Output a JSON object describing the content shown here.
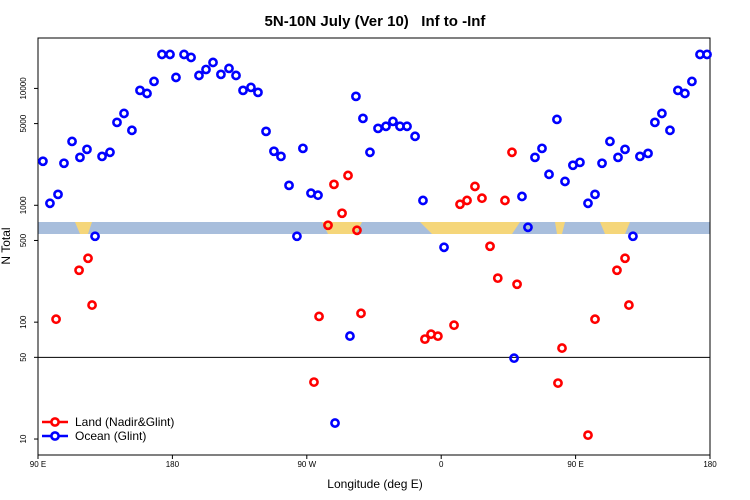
{
  "chart_data": {
    "type": "scatter",
    "title": "5N-10N July (Ver 10)   Inf to -Inf",
    "xlabel": "Longitude (deg E)",
    "ylabel": "N Total",
    "xlim": [
      90,
      540
    ],
    "ylim": [
      7.3,
      27000
    ],
    "yscale": "log",
    "xticks": [
      {
        "value": 90,
        "label": "90 E"
      },
      {
        "value": 180,
        "label": "180"
      },
      {
        "value": 270,
        "label": "90 W"
      },
      {
        "value": 360,
        "label": "0"
      },
      {
        "value": 450,
        "label": "90 E"
      },
      {
        "value": 540,
        "label": "180"
      }
    ],
    "yticks": [
      10,
      50,
      100,
      500,
      1000,
      5000,
      10000
    ],
    "reference_line": 50,
    "legend": "bottom-left",
    "series": [
      {
        "name": "Land (Nadir&Glint)",
        "color": "#ff0000",
        "x": [
          102.1,
          117.5,
          123.5,
          126.2,
          274.8,
          278.2,
          284.2,
          288.2,
          293.6,
          297.6,
          303.6,
          306.3,
          349.1,
          353.2,
          357.8,
          368.6,
          372.6,
          377.3,
          382.6,
          387.3,
          392.7,
          397.9,
          402.7,
          407.4,
          410.8,
          438.2,
          440.9,
          458.3,
          463.0,
          477.7,
          483.1,
          485.7
        ],
        "values": [
          106,
          278,
          352,
          140,
          30.7,
          112,
          675,
          1510,
          855,
          1800,
          611,
          119,
          71.6,
          78.9,
          75.9,
          94.2,
          1020,
          1100,
          1450,
          1150,
          446,
          238,
          1100,
          2840,
          211,
          30.1,
          60,
          10.8,
          106,
          278,
          352,
          140
        ]
      },
      {
        "name": "Ocean (Glint)",
        "color": "#0000ff",
        "x": [
          93.3,
          98.0,
          103.4,
          107.4,
          112.8,
          118.1,
          122.8,
          128.2,
          132.9,
          138.2,
          142.9,
          147.6,
          152.9,
          158.3,
          163.0,
          167.7,
          173.0,
          178.4,
          182.4,
          187.8,
          192.5,
          197.8,
          202.5,
          207.2,
          212.5,
          217.9,
          222.6,
          227.3,
          232.6,
          237.3,
          242.7,
          248.0,
          252.7,
          258.1,
          263.4,
          267.4,
          272.8,
          277.5,
          288.9,
          298.9,
          302.9,
          307.6,
          312.3,
          317.7,
          323.0,
          327.7,
          332.4,
          337.1,
          342.5,
          347.8,
          361.9,
          408.8,
          414.1,
          418.1,
          422.8,
          427.5,
          432.2,
          437.5,
          442.9,
          448.2,
          452.9,
          458.3,
          463.0,
          467.7,
          473.0,
          478.4,
          483.1,
          488.4,
          493.1,
          498.5,
          503.1,
          507.8,
          513.2,
          518.5,
          523.2,
          527.9,
          533.3,
          538.0
        ],
        "values": [
          2380,
          1040,
          1240,
          2290,
          3520,
          2570,
          3010,
          543,
          2620,
          2840,
          5120,
          6110,
          4380,
          9620,
          9060,
          11480,
          19540,
          19540,
          12420,
          19540,
          18410,
          12910,
          14520,
          16680,
          13180,
          14830,
          12910,
          9620,
          10200,
          9250,
          4290,
          2900,
          2620,
          1480,
          543,
          3070,
          1270,
          1220,
          13.7,
          76,
          8550,
          5540,
          2840,
          4550,
          4740,
          5220,
          4740,
          4740,
          3890,
          1100,
          437,
          49.2,
          1190,
          648,
          2570,
          3070,
          1840,
          5430,
          1600,
          2200,
          2330,
          1040,
          1240,
          2290,
          3520,
          2570,
          3010,
          543,
          2620,
          2780,
          5120,
          6110,
          4380,
          9620,
          9060,
          11480,
          19540,
          19540
        ]
      }
    ]
  }
}
